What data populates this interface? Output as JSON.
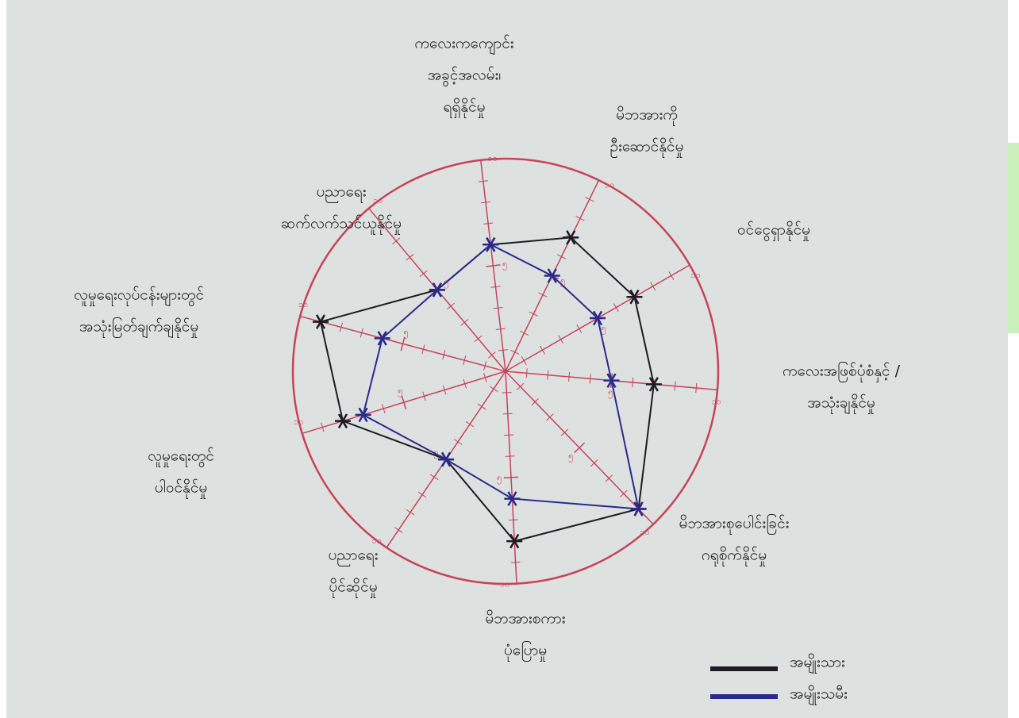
{
  "chart_data": {
    "type": "radar",
    "labels": [
      [
        "ကလေးကကျောင်း",
        "အခွင့်အလမ်း၊",
        "ရရှိနိုင်မှု"
      ],
      [
        "မိဘအားကို",
        "ဦးဆောင်နိုင်မှု"
      ],
      [
        "ဝင်ငွေရှာနိုင်မှု"
      ],
      [
        "ကလေးအဖြစ်ပုံစံနှင့် /",
        "အသုံးချနိုင်မှု"
      ],
      [
        "မိဘအားစုပေါင်းခြင်း",
        "ဂရုစိုက်နိုင်မှု"
      ],
      [
        "မိဘအားစကား",
        "ပုံပြောမှု"
      ],
      [
        "ပညာရေး",
        "ပိုင်ဆိုင်မှု"
      ],
      [
        "လူမှုရေးတွင်",
        "ပါဝင်နိုင်မှု"
      ],
      [
        "လူမှုရေးလုပ်ငန်းများတွင်",
        "အသုံးမြတ်ချက်ချနိုင်မှု"
      ],
      [
        "ပညာရေး",
        "ဆက်လက်သင်ယူနိုင်မှု"
      ]
    ],
    "rlim": [
      0,
      10
    ],
    "rticks": [
      {
        "value": 5,
        "label": "၅"
      },
      {
        "value": 10,
        "label": "၁၀"
      }
    ],
    "rminorticks": [
      1,
      2,
      3,
      4,
      6,
      7,
      8,
      9
    ],
    "grid_color": "#c8425a",
    "series": [
      {
        "name": "အမျိုးသား",
        "color": "#1c1c22",
        "values": [
          6,
          7,
          7,
          7,
          9,
          8,
          5,
          8,
          9,
          5
        ]
      },
      {
        "name": "အမျိုးသမီး",
        "color": "#2a2a8c",
        "values": [
          6,
          5,
          5,
          5,
          9,
          6,
          5,
          7,
          6,
          5
        ]
      }
    ]
  }
}
